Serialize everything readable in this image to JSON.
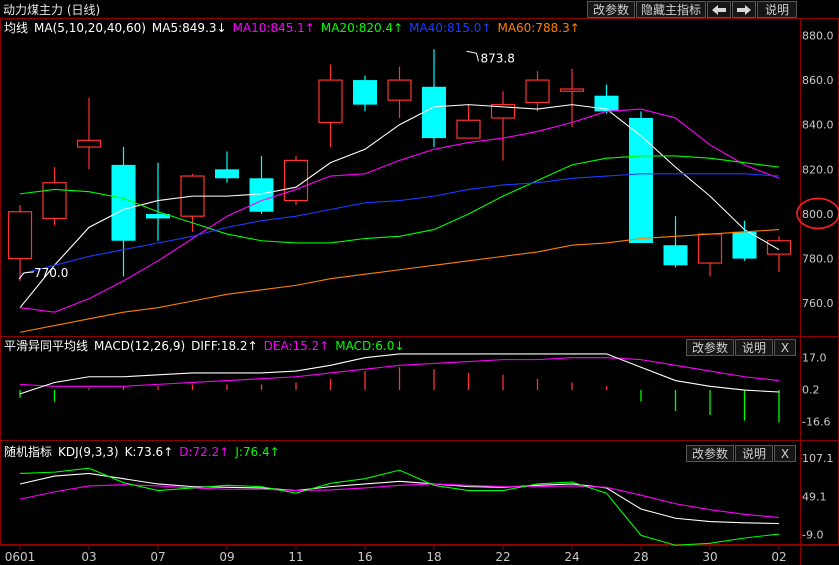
{
  "title": "动力煤主力 (日线)",
  "toolbar": {
    "change_params": "改参数",
    "hide_main_indicator": "隐藏主指标",
    "prev_icon": "arrow-left-icon",
    "next_icon": "arrow-right-icon",
    "help": "说明"
  },
  "subpanel_buttons": {
    "change_params": "改参数",
    "help": "说明",
    "close": "X"
  },
  "colors": {
    "up": "#ff3232",
    "down": "#00ffff",
    "ma5": "#ffffff",
    "ma10": "#ff00ff",
    "ma20": "#00ff00",
    "ma40": "#1a3cff",
    "ma60": "#ff8000",
    "frame": "#8b0000"
  },
  "chart_data": [
    {
      "type": "candlestick",
      "panel": "main",
      "legend": [
        {
          "text": "均线",
          "color": "#ffffff"
        },
        {
          "text": "MA(5,10,20,40,60)",
          "color": "#ffffff"
        },
        {
          "text": "MA5:849.3↓",
          "color": "#ffffff"
        },
        {
          "text": "MA10:845.1↑",
          "color": "#ff00ff"
        },
        {
          "text": "MA20:820.4↑",
          "color": "#00ff00"
        },
        {
          "text": "MA40:815.0↑",
          "color": "#1a3cff"
        },
        {
          "text": "MA60:788.3↑",
          "color": "#ff8000"
        }
      ],
      "y_ticks": [
        "880.0",
        "860.0",
        "840.0",
        "820.0",
        "800.0",
        "780.0",
        "760.0"
      ],
      "ylim": [
        748,
        882
      ],
      "highlight_tick": "800.0",
      "annotations": [
        {
          "text": "873.8",
          "index": 13,
          "value": 873.8
        },
        {
          "text": "770.0",
          "index": 0,
          "value": 770
        }
      ],
      "x_labels": [
        {
          "index": 0,
          "label": "0601"
        },
        {
          "index": 2,
          "label": "03"
        },
        {
          "index": 4,
          "label": "07"
        },
        {
          "index": 6,
          "label": "09"
        },
        {
          "index": 8,
          "label": "11"
        },
        {
          "index": 10,
          "label": "16"
        },
        {
          "index": 12,
          "label": "18"
        },
        {
          "index": 14,
          "label": "22"
        },
        {
          "index": 16,
          "label": "24"
        },
        {
          "index": 18,
          "label": "28"
        },
        {
          "index": 20,
          "label": "30"
        },
        {
          "index": 22,
          "label": "02"
        }
      ],
      "candles": [
        {
          "o": 780,
          "h": 804,
          "l": 770,
          "c": 801
        },
        {
          "o": 798,
          "h": 821,
          "l": 795,
          "c": 814
        },
        {
          "o": 830,
          "h": 852,
          "l": 820,
          "c": 833
        },
        {
          "o": 822,
          "h": 830,
          "l": 772,
          "c": 788
        },
        {
          "o": 800,
          "h": 823,
          "l": 788,
          "c": 798
        },
        {
          "o": 799,
          "h": 818,
          "l": 792,
          "c": 817
        },
        {
          "o": 820,
          "h": 828,
          "l": 814,
          "c": 816
        },
        {
          "o": 816,
          "h": 826,
          "l": 800,
          "c": 801
        },
        {
          "o": 806,
          "h": 826,
          "l": 804,
          "c": 824
        },
        {
          "o": 841,
          "h": 867,
          "l": 830,
          "c": 860
        },
        {
          "o": 860,
          "h": 862,
          "l": 846,
          "c": 849
        },
        {
          "o": 851,
          "h": 866,
          "l": 843,
          "c": 860
        },
        {
          "o": 857,
          "h": 873.8,
          "l": 830,
          "c": 834
        },
        {
          "o": 834,
          "h": 849,
          "l": 834,
          "c": 842
        },
        {
          "o": 843,
          "h": 855,
          "l": 824,
          "c": 849
        },
        {
          "o": 850,
          "h": 864,
          "l": 846,
          "c": 860
        },
        {
          "o": 855,
          "h": 865,
          "l": 839,
          "c": 856
        },
        {
          "o": 853,
          "h": 858,
          "l": 845,
          "c": 846
        },
        {
          "o": 843,
          "h": 846,
          "l": 788,
          "c": 787
        },
        {
          "o": 786,
          "h": 799,
          "l": 776,
          "c": 777
        },
        {
          "o": 778,
          "h": 791,
          "l": 772,
          "c": 791
        },
        {
          "o": 792,
          "h": 797,
          "l": 779,
          "c": 780
        },
        {
          "o": 782,
          "h": 790,
          "l": 774,
          "c": 788
        }
      ],
      "series": [
        {
          "name": "MA5",
          "color": "#ffffff",
          "values": [
            758,
            777,
            794,
            802,
            806,
            808,
            808,
            809,
            812,
            823,
            829,
            840,
            848,
            849,
            848,
            847,
            849,
            847,
            835,
            821,
            808,
            793,
            784
          ]
        },
        {
          "name": "MA10",
          "color": "#ff00ff",
          "values": [
            758,
            756,
            762,
            770,
            779,
            789,
            799,
            806,
            811,
            817,
            818,
            824,
            829,
            832,
            834,
            837,
            841,
            846,
            847,
            843,
            831,
            822,
            816
          ]
        },
        {
          "name": "MA20",
          "color": "#00ff00",
          "values": [
            809,
            811,
            810,
            807,
            801,
            796,
            791,
            788,
            787,
            787,
            789,
            790,
            793,
            800,
            808,
            815,
            822,
            825,
            826,
            826,
            825,
            823,
            821
          ]
        },
        {
          "name": "MA40",
          "color": "#1a3cff",
          "values": [
            773,
            777,
            781,
            784,
            787,
            790,
            794,
            797,
            799,
            802,
            805,
            806,
            808,
            811,
            813,
            814,
            816,
            817,
            818,
            818,
            818,
            818,
            817
          ]
        },
        {
          "name": "MA60",
          "color": "#ff8000",
          "values": [
            747,
            750,
            753,
            756,
            758,
            761,
            764,
            766,
            768,
            771,
            773,
            775,
            777,
            779,
            781,
            783,
            786,
            787,
            789,
            790,
            791,
            792,
            793
          ]
        }
      ]
    },
    {
      "type": "bar",
      "panel": "macd",
      "legend": [
        {
          "text": "平滑异同平均线",
          "color": "#ffffff"
        },
        {
          "text": "MACD(12,26,9)",
          "color": "#ffffff"
        },
        {
          "text": "DIFF:18.2↑",
          "color": "#ffffff"
        },
        {
          "text": "DEA:15.2↑",
          "color": "#ff00ff"
        },
        {
          "text": "MACD:6.0↓",
          "color": "#00ff00"
        }
      ],
      "y_ticks": [
        "17.0",
        "0.2",
        "-16.6"
      ],
      "ylim": [
        -22,
        20
      ],
      "diff": [
        -2,
        4,
        7,
        7,
        8,
        9,
        9,
        9,
        10,
        13,
        17,
        19,
        19,
        19,
        19,
        19,
        19,
        19,
        12,
        5,
        2,
        0,
        -1
      ],
      "dea": [
        3,
        2,
        2,
        2,
        3,
        4,
        5,
        6,
        7,
        9,
        11,
        13,
        14,
        15,
        16,
        16,
        17,
        17,
        16,
        13,
        10,
        7,
        5
      ],
      "macd": [
        -4,
        -6,
        1,
        2,
        2,
        3,
        3,
        3,
        4,
        6,
        10,
        12,
        11,
        9,
        8,
        6,
        4,
        2,
        -6,
        -11,
        -13,
        -16,
        -17
      ]
    },
    {
      "type": "line",
      "panel": "kdj",
      "legend": [
        {
          "text": "随机指标",
          "color": "#ffffff"
        },
        {
          "text": "KDJ(9,3,3)",
          "color": "#ffffff"
        },
        {
          "text": "K:73.6↑",
          "color": "#ffffff"
        },
        {
          "text": "D:72.2↑",
          "color": "#ff00ff"
        },
        {
          "text": "J:76.4↑",
          "color": "#00ff00"
        }
      ],
      "y_ticks": [
        "107.1",
        "49.1",
        "-9.0"
      ],
      "ylim": [
        -14,
        112
      ],
      "series": [
        {
          "name": "K",
          "color": "#ffffff",
          "values": [
            68,
            80,
            84,
            76,
            68,
            64,
            63,
            62,
            58,
            64,
            68,
            72,
            68,
            64,
            63,
            66,
            68,
            62,
            30,
            16,
            11,
            9,
            8
          ]
        },
        {
          "name": "D",
          "color": "#ff00ff",
          "values": [
            45,
            56,
            65,
            67,
            65,
            62,
            60,
            60,
            58,
            59,
            62,
            66,
            68,
            66,
            64,
            64,
            65,
            63,
            51,
            38,
            29,
            22,
            17
          ]
        },
        {
          "name": "J",
          "color": "#00ff00",
          "values": [
            84,
            86,
            92,
            70,
            58,
            62,
            66,
            64,
            54,
            69,
            76,
            89,
            66,
            58,
            58,
            68,
            71,
            54,
            -10,
            -25,
            -22,
            -14,
            -8
          ]
        }
      ]
    }
  ]
}
